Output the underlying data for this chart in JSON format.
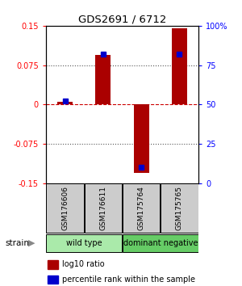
{
  "title": "GDS2691 / 6712",
  "samples": [
    "GSM176606",
    "GSM176611",
    "GSM175764",
    "GSM175765"
  ],
  "log10_ratio": [
    0.005,
    0.095,
    -0.13,
    0.145
  ],
  "percentile_rank": [
    52,
    82,
    10,
    82
  ],
  "groups": [
    {
      "label": "wild type",
      "samples": [
        0,
        1
      ],
      "color": "#aaeaaa"
    },
    {
      "label": "dominant negative",
      "samples": [
        2,
        3
      ],
      "color": "#66cc66"
    }
  ],
  "ylim": [
    -0.15,
    0.15
  ],
  "yticks_left": [
    -0.15,
    -0.075,
    0,
    0.075,
    0.15
  ],
  "yticks_right": [
    0,
    25,
    50,
    75,
    100
  ],
  "bar_color": "#aa0000",
  "dot_color": "#0000cc",
  "zero_line_color": "#cc0000",
  "grid_color": "#555555",
  "label_log10": "log10 ratio",
  "label_pct": "percentile rank within the sample",
  "strain_label": "strain",
  "sample_box_color": "#cccccc",
  "bar_width": 0.4
}
